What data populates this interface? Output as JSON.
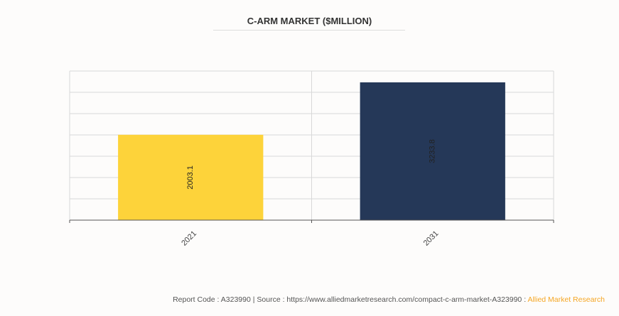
{
  "chart_data": {
    "type": "bar",
    "title": "C-ARM MARKET ($MILLION)",
    "categories": [
      "2021",
      "2031"
    ],
    "values": [
      2003.1,
      3233.8
    ],
    "colors": [
      "#fdd33a",
      "#253858"
    ],
    "xlabel": "",
    "ylabel": "",
    "ylim": [
      0,
      3500
    ],
    "grid": true
  },
  "footer": {
    "text": "Report Code : A323990  |  Source : https://www.alliedmarketresearch.com/compact-c-arm-market-A323990 : ",
    "brand": "Allied Market Research"
  }
}
